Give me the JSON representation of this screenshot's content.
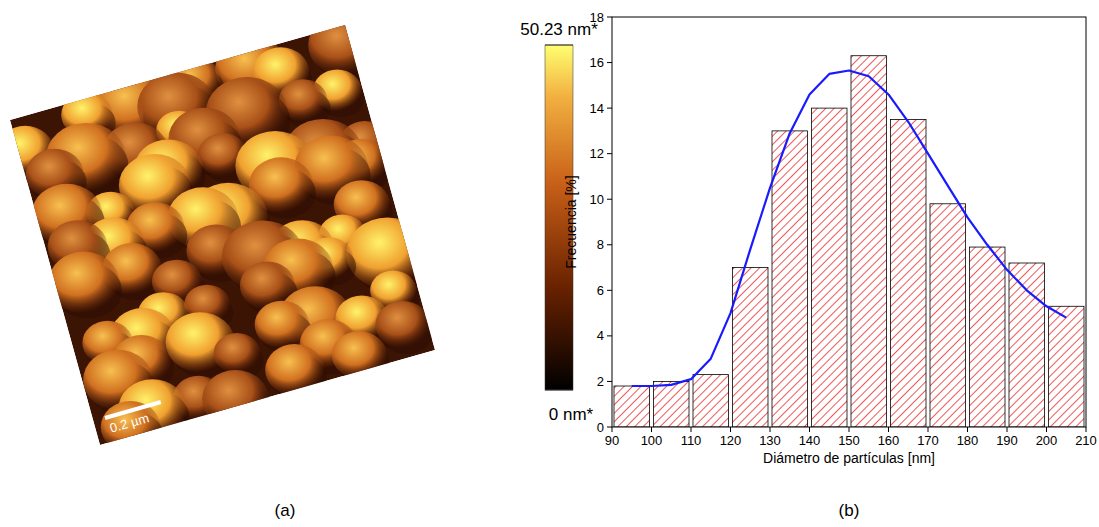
{
  "chart_data": [
    {
      "type": "image",
      "panel_label": "(a)",
      "scale_bar": "0.2 µm",
      "colorbar_lim": [
        0,
        50.23
      ],
      "colorbar_ticks": [
        {
          "value": 50.23,
          "label": "50.23 nm*"
        },
        {
          "value": 0,
          "label": "0 nm*"
        }
      ]
    },
    {
      "type": "histogram",
      "panel_label": "(b)",
      "xlabel": "Diámetro de partículas [nm]",
      "ylabel": "Frecuencia [%]",
      "bins": [
        90,
        100,
        110,
        120,
        130,
        140,
        150,
        160,
        170,
        180,
        190,
        200,
        210
      ],
      "values": [
        1.8,
        2.0,
        2.3,
        7.0,
        13.0,
        14.0,
        16.3,
        13.5,
        9.8,
        7.9,
        7.2,
        5.3
      ],
      "color": "#e8302f",
      "xlim": [
        90,
        210
      ],
      "xticks": [
        90,
        100,
        110,
        120,
        130,
        140,
        150,
        160,
        170,
        180,
        190,
        200,
        210
      ],
      "ylim": [
        0,
        18
      ],
      "yticks": [
        0,
        2,
        4,
        6,
        8,
        10,
        12,
        14,
        16,
        18
      ],
      "curve": {
        "type": "line",
        "color": "#1a1aff",
        "x": [
          95,
          100,
          105,
          110,
          115,
          120,
          125,
          130,
          135,
          140,
          145,
          150,
          155,
          160,
          165,
          170,
          175,
          180,
          185,
          190,
          195,
          200,
          205
        ],
        "values": [
          1.8,
          1.8,
          1.85,
          2.1,
          3.0,
          5.0,
          7.8,
          10.5,
          12.9,
          14.6,
          15.5,
          15.65,
          15.4,
          14.6,
          13.4,
          12.0,
          10.6,
          9.2,
          8.0,
          6.9,
          6.0,
          5.3,
          4.8
        ]
      }
    }
  ]
}
